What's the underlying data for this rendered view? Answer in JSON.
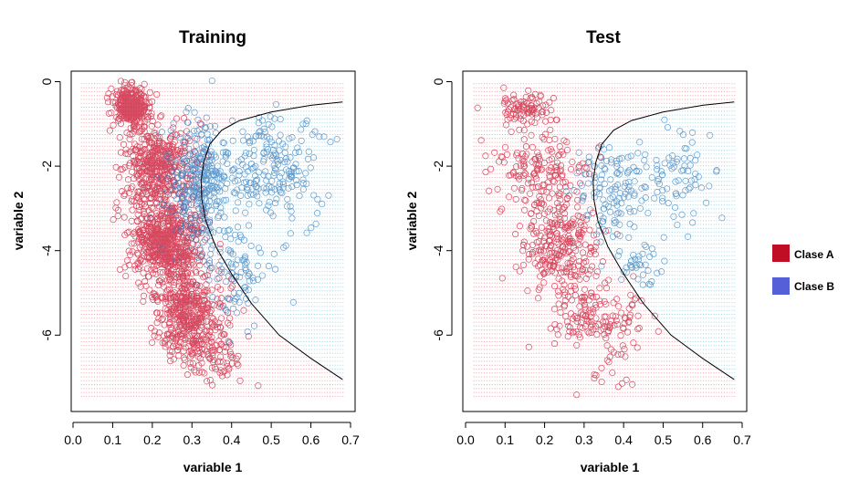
{
  "chart_data": [
    {
      "type": "scatter",
      "title": "Training",
      "xlabel": "variable 1",
      "ylabel": "variable 2",
      "xlim": [
        0.0,
        0.7
      ],
      "ylim": [
        -7.6,
        0.2
      ],
      "xticks": [
        "0.0",
        "0.1",
        "0.2",
        "0.3",
        "0.4",
        "0.5",
        "0.6",
        "0.7"
      ],
      "xtick_values": [
        0.0,
        0.1,
        0.2,
        0.3,
        0.4,
        0.5,
        0.6,
        0.7
      ],
      "yticks": [
        "0",
        "-2",
        "-4",
        "-6"
      ],
      "ytick_values": [
        0,
        -2,
        -4,
        -6
      ],
      "series": [
        {
          "name": "Clase A",
          "color": "#c8102e",
          "clusters": [
            {
              "x": [
                0.1,
                0.19
              ],
              "y": [
                -1.0,
                -0.15
              ],
              "n": 320
            },
            {
              "x": [
                0.12,
                0.3
              ],
              "y": [
                -3.0,
                -1.0
              ],
              "n": 450
            },
            {
              "x": [
                0.15,
                0.32
              ],
              "y": [
                -4.8,
                -2.8
              ],
              "n": 650
            },
            {
              "x": [
                0.2,
                0.38
              ],
              "y": [
                -6.5,
                -4.5
              ],
              "n": 450
            },
            {
              "x": [
                0.26,
                0.44
              ],
              "y": [
                -7.2,
                -5.8
              ],
              "n": 90
            }
          ]
        },
        {
          "name": "Clase B",
          "color": "#2e7bbf",
          "clusters": [
            {
              "x": [
                0.25,
                0.4
              ],
              "y": [
                -4.0,
                -1.0
              ],
              "n": 330
            },
            {
              "x": [
                0.38,
                0.62
              ],
              "y": [
                -3.4,
                -0.8
              ],
              "n": 210
            },
            {
              "x": [
                0.34,
                0.5
              ],
              "y": [
                -5.6,
                -3.5
              ],
              "n": 90
            }
          ]
        }
      ],
      "boundary": {
        "x": [
          0.68,
          0.6,
          0.5,
          0.42,
          0.375,
          0.345,
          0.33,
          0.323,
          0.325,
          0.335,
          0.36,
          0.4,
          0.45,
          0.52,
          0.6,
          0.68
        ],
        "y": [
          -0.48,
          -0.56,
          -0.72,
          -0.92,
          -1.15,
          -1.48,
          -1.9,
          -2.35,
          -2.8,
          -3.3,
          -3.9,
          -4.55,
          -5.25,
          -6.0,
          -6.55,
          -7.05
        ]
      },
      "grid": false
    },
    {
      "type": "scatter",
      "title": "Test",
      "xlabel": "variable 1",
      "ylabel": "variable 2",
      "xlim": [
        0.0,
        0.7
      ],
      "ylim": [
        -7.6,
        0.2
      ],
      "xticks": [
        "0.0",
        "0.1",
        "0.2",
        "0.3",
        "0.4",
        "0.5",
        "0.6",
        "0.7"
      ],
      "xtick_values": [
        0.0,
        0.1,
        0.2,
        0.3,
        0.4,
        0.5,
        0.6,
        0.7
      ],
      "yticks": [
        "0",
        "-2",
        "-4",
        "-6"
      ],
      "ytick_values": [
        0,
        -2,
        -4,
        -6
      ],
      "series": [
        {
          "name": "Clase A",
          "color": "#c8102e",
          "clusters": [
            {
              "x": [
                0.08,
                0.22
              ],
              "y": [
                -1.0,
                -0.25
              ],
              "n": 90
            },
            {
              "x": [
                0.08,
                0.32
              ],
              "y": [
                -2.8,
                -1.2
              ],
              "n": 150
            },
            {
              "x": [
                0.13,
                0.34
              ],
              "y": [
                -5.0,
                -2.8
              ],
              "n": 280
            },
            {
              "x": [
                0.22,
                0.46
              ],
              "y": [
                -6.4,
                -4.8
              ],
              "n": 140
            },
            {
              "x": [
                0.3,
                0.44
              ],
              "y": [
                -7.6,
                -6.2
              ],
              "n": 20
            }
          ]
        },
        {
          "name": "Clase B",
          "color": "#2e7bbf",
          "clusters": [
            {
              "x": [
                0.28,
                0.44
              ],
              "y": [
                -3.8,
                -1.4
              ],
              "n": 110
            },
            {
              "x": [
                0.4,
                0.64
              ],
              "y": [
                -3.4,
                -1.2
              ],
              "n": 90
            },
            {
              "x": [
                0.36,
                0.52
              ],
              "y": [
                -5.0,
                -3.6
              ],
              "n": 40
            }
          ]
        }
      ],
      "boundary": {
        "x": [
          0.68,
          0.6,
          0.5,
          0.42,
          0.375,
          0.345,
          0.33,
          0.323,
          0.325,
          0.335,
          0.36,
          0.4,
          0.45,
          0.52,
          0.6,
          0.68
        ],
        "y": [
          -0.48,
          -0.56,
          -0.72,
          -0.92,
          -1.15,
          -1.48,
          -1.9,
          -2.35,
          -2.8,
          -3.3,
          -3.9,
          -4.55,
          -5.25,
          -6.0,
          -6.55,
          -7.05
        ]
      },
      "grid": false
    }
  ],
  "legend": {
    "placement": "right",
    "items": [
      {
        "label": "Clase A",
        "color": "#c00f24"
      },
      {
        "label": "Clase B",
        "color": "#5560d8"
      }
    ]
  },
  "background_grid": {
    "red": "#f08a96",
    "blue": "#8fcdd6"
  }
}
